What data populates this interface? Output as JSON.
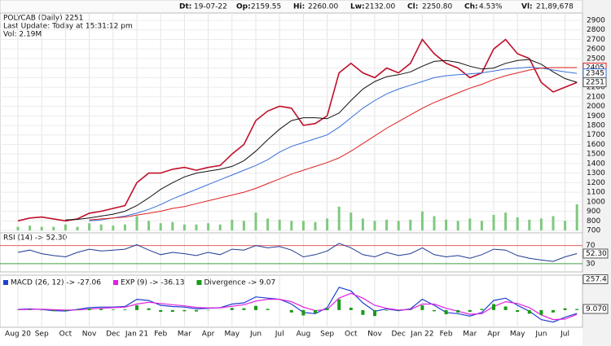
{
  "header": {
    "items": [
      {
        "label": "Dt:",
        "value": "19-07-22"
      },
      {
        "label": "Op:",
        "value": "2159.55"
      },
      {
        "label": "Hi:",
        "value": "2260.00"
      },
      {
        "label": "Lw:",
        "value": "2132.00"
      },
      {
        "label": "Cl:",
        "value": "2250.80"
      },
      {
        "label": "Ch:",
        "value": "4.53%"
      },
      {
        "label": "Vl:",
        "value": "21,89,678"
      }
    ]
  },
  "chart_data": [
    {
      "type": "line",
      "title": "POLYCAB (Daily) 2251",
      "subtitle": "Last Update: Today at 15:31:12 pm",
      "annotation": "Vol: 2.19M",
      "categories": [
        "Aug 20",
        null,
        "Sep",
        null,
        "Oct",
        null,
        "Nov",
        null,
        "Dec",
        null,
        "Jan 21",
        null,
        "Feb",
        null,
        "Mar",
        null,
        "Apr",
        null,
        "May",
        null,
        "Jun",
        null,
        "Jul",
        null,
        "Aug",
        null,
        "Sep",
        null,
        "Oct",
        null,
        "Nov",
        null,
        "Dec",
        null,
        "Jan 22",
        null,
        "Feb",
        null,
        "Mar",
        null,
        "Apr",
        null,
        "May",
        null,
        "Jun",
        null,
        "Jul",
        null
      ],
      "series": [
        {
          "color": "#c0102a",
          "values": [
            800,
            830,
            840,
            820,
            800,
            820,
            880,
            900,
            930,
            960,
            1200,
            1300,
            1300,
            1340,
            1360,
            1330,
            1360,
            1380,
            1500,
            1600,
            1850,
            1950,
            2000,
            1980,
            1800,
            1820,
            1900,
            2350,
            2450,
            2350,
            2300,
            2400,
            2350,
            2450,
            2700,
            2550,
            2450,
            2400,
            2300,
            2350,
            2600,
            2700,
            2550,
            2500,
            2250,
            2150,
            2200,
            2250
          ]
        },
        {
          "color": "#111111",
          "values": [
            null,
            null,
            null,
            null,
            810,
            815,
            830,
            850,
            870,
            900,
            960,
            1040,
            1130,
            1200,
            1260,
            1300,
            1320,
            1340,
            1370,
            1430,
            1530,
            1650,
            1760,
            1850,
            1880,
            1880,
            1870,
            1930,
            2060,
            2180,
            2260,
            2310,
            2330,
            2360,
            2420,
            2470,
            2480,
            2460,
            2420,
            2390,
            2400,
            2450,
            2480,
            2490,
            2440,
            2360,
            2290,
            2251
          ]
        },
        {
          "color": "#3a6fd8",
          "values": [
            null,
            null,
            null,
            null,
            null,
            null,
            800,
            810,
            830,
            850,
            880,
            920,
            970,
            1030,
            1080,
            1130,
            1180,
            1230,
            1280,
            1330,
            1380,
            1440,
            1520,
            1580,
            1620,
            1660,
            1700,
            1780,
            1880,
            1980,
            2060,
            2130,
            2180,
            2220,
            2260,
            2300,
            2320,
            2330,
            2340,
            2350,
            2370,
            2390,
            2400,
            2410,
            2400,
            2380,
            2360,
            2345
          ]
        },
        {
          "color": "#e02020",
          "values": [
            null,
            null,
            null,
            null,
            null,
            null,
            810,
            820,
            830,
            840,
            860,
            880,
            900,
            930,
            950,
            980,
            1010,
            1040,
            1070,
            1100,
            1140,
            1190,
            1240,
            1290,
            1330,
            1370,
            1410,
            1460,
            1530,
            1610,
            1690,
            1770,
            1840,
            1910,
            1980,
            2040,
            2090,
            2140,
            2190,
            2230,
            2280,
            2320,
            2350,
            2380,
            2400,
            2405,
            2405,
            2405
          ]
        }
      ],
      "volume": {
        "color": "#7fc97f",
        "values": [
          0.3,
          0.4,
          0.3,
          0.3,
          0.5,
          0.3,
          0.6,
          0.5,
          0.4,
          0.5,
          1.2,
          0.8,
          0.6,
          0.7,
          0.5,
          0.5,
          0.6,
          0.5,
          0.9,
          0.8,
          1.5,
          1.0,
          0.9,
          0.8,
          0.8,
          0.7,
          1.0,
          2.0,
          1.5,
          1.0,
          0.8,
          0.9,
          0.8,
          0.9,
          1.6,
          1.2,
          0.9,
          0.8,
          1.0,
          0.8,
          1.3,
          1.5,
          1.1,
          0.9,
          1.0,
          1.2,
          0.8,
          2.19
        ]
      },
      "price_markers": [
        {
          "value": 2405,
          "color": "#e02020"
        },
        {
          "value": 2345,
          "color": "#3a6fd8"
        },
        {
          "value": 2251,
          "color": "#555555"
        }
      ],
      "ylim": [
        700,
        2900
      ],
      "yticks": [
        700,
        800,
        900,
        1000,
        1100,
        1200,
        1300,
        1400,
        1500,
        1600,
        1700,
        1800,
        1900,
        2000,
        2100,
        2200,
        2300,
        2400,
        2500,
        2600,
        2700,
        2800,
        2900
      ],
      "grid": true
    },
    {
      "type": "line",
      "title": "RSI (14) -> 52.30",
      "series": [
        {
          "color": "#1f3a93",
          "values": [
            55,
            60,
            52,
            48,
            45,
            55,
            62,
            58,
            60,
            62,
            72,
            60,
            50,
            55,
            52,
            48,
            55,
            50,
            62,
            60,
            70,
            65,
            68,
            60,
            45,
            50,
            58,
            75,
            65,
            50,
            45,
            55,
            48,
            52,
            65,
            50,
            45,
            48,
            42,
            50,
            62,
            60,
            48,
            42,
            38,
            35,
            45,
            52.3
          ]
        }
      ],
      "ylim": [
        0,
        100
      ],
      "yticks": [
        30,
        {
          "value": 52.3,
          "label": "52.30"
        },
        70
      ],
      "grid": true
    },
    {
      "type": "line",
      "ylim": [
        -130,
        257.4
      ],
      "yticks": [
        {
          "value": 9.07,
          "label": "9.070"
        },
        257.4
      ],
      "series": [
        {
          "name": "MACD (26, 12) -> -27.06",
          "color": "#2040d0",
          "style": "line",
          "values": [
            5,
            10,
            5,
            -5,
            -8,
            5,
            20,
            25,
            25,
            30,
            90,
            80,
            40,
            30,
            25,
            10,
            15,
            20,
            50,
            60,
            110,
            100,
            90,
            50,
            -20,
            -30,
            20,
            190,
            160,
            60,
            -10,
            10,
            -5,
            10,
            90,
            40,
            -20,
            -30,
            -50,
            -20,
            80,
            100,
            40,
            -10,
            -80,
            -100,
            -60,
            -27.06
          ]
        },
        {
          "name": "EXP (9) -> -36.13",
          "color": "#e020e0",
          "style": "line",
          "values": [
            3,
            6,
            7,
            4,
            0,
            1,
            8,
            15,
            20,
            24,
            50,
            65,
            55,
            45,
            35,
            22,
            18,
            19,
            32,
            45,
            75,
            90,
            90,
            70,
            25,
            -5,
            5,
            100,
            140,
            100,
            40,
            15,
            0,
            5,
            50,
            50,
            15,
            -10,
            -35,
            -30,
            30,
            70,
            55,
            20,
            -40,
            -80,
            -75,
            -36.13
          ]
        },
        {
          "name": "Divergence -> 9.07",
          "color": "#1a9a1a",
          "style": "bar",
          "values": [
            2,
            4,
            -2,
            -9,
            -8,
            4,
            12,
            10,
            5,
            6,
            40,
            15,
            -15,
            -15,
            -10,
            -12,
            -3,
            1,
            18,
            15,
            35,
            10,
            0,
            -20,
            -45,
            -25,
            15,
            90,
            20,
            -40,
            -50,
            -5,
            -5,
            5,
            40,
            -10,
            -35,
            -20,
            -15,
            10,
            50,
            30,
            -15,
            -30,
            -40,
            -20,
            15,
            9.07
          ]
        }
      ]
    }
  ]
}
